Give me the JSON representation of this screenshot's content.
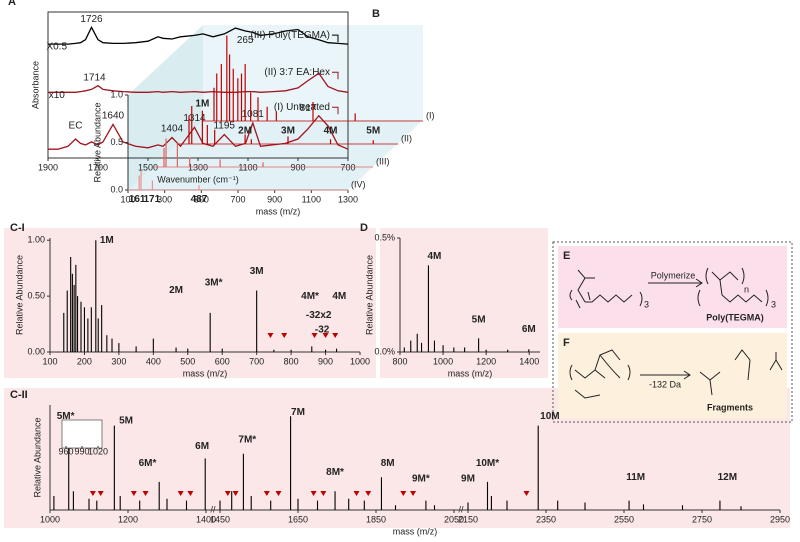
{
  "chart_data": [
    {
      "type": "line",
      "panel": "A",
      "xlabel": "Wavenumber (cm⁻¹)",
      "ylabel": "Absorbance",
      "xlim": [
        1900,
        700
      ],
      "xticks": [
        1900,
        1700,
        1500,
        1300,
        1100,
        900,
        700
      ],
      "ylim": [
        0,
        10
      ],
      "x": [
        1900,
        1860,
        1820,
        1790,
        1770,
        1750,
        1726,
        1700,
        1680,
        1640,
        1600,
        1550,
        1500,
        1460,
        1440,
        1404,
        1370,
        1314,
        1280,
        1240,
        1195,
        1150,
        1110,
        1081,
        1050,
        1000,
        950,
        900,
        860,
        817,
        780,
        740,
        700
      ],
      "series": [
        {
          "name": "(III) Poly(TEGMA)",
          "color": "#000000",
          "values": [
            7.8,
            7.8,
            7.8,
            7.85,
            7.9,
            8.1,
            8.95,
            8.1,
            7.9,
            7.85,
            7.85,
            7.9,
            8.0,
            8.3,
            8.2,
            8.15,
            8.3,
            8.4,
            8.5,
            8.3,
            8.5,
            8.9,
            8.7,
            8.6,
            8.4,
            8.5,
            8.7,
            8.8,
            8.3,
            8.1,
            7.9,
            7.85,
            7.8
          ]
        },
        {
          "name": "(II) 3:7 EA:Hex",
          "color": "#a0141e",
          "values": [
            4.5,
            4.5,
            4.5,
            4.5,
            4.55,
            4.6,
            4.7,
            4.95,
            4.7,
            4.6,
            4.55,
            4.5,
            4.5,
            4.55,
            4.5,
            4.55,
            4.5,
            4.55,
            4.5,
            4.55,
            4.5,
            4.5,
            4.55,
            4.55,
            4.5,
            4.55,
            4.6,
            4.8,
            5.3,
            5.8,
            4.9,
            4.6,
            4.5
          ]
        },
        {
          "name": "(I) Untreated",
          "color": "#a0141e",
          "values": [
            0.6,
            0.6,
            0.8,
            1.3,
            1.0,
            0.9,
            1.1,
            0.9,
            1.1,
            2.3,
            1.1,
            0.8,
            0.7,
            0.9,
            0.8,
            1.4,
            0.8,
            2.1,
            1.0,
            0.8,
            1.6,
            0.8,
            1.0,
            2.4,
            0.8,
            0.9,
            1.0,
            1.3,
            2.0,
            2.9,
            2.2,
            0.9,
            0.6
          ]
        }
      ],
      "annotations": [
        {
          "text": "1726",
          "x": 1726,
          "y": 9.5
        },
        {
          "text": "X0.5",
          "x": 1865,
          "y": 7.6
        },
        {
          "text": "1714",
          "x": 1714,
          "y": 5.5
        },
        {
          "text": "x10",
          "x": 1865,
          "y": 4.3
        },
        {
          "text": "EC",
          "x": 1790,
          "y": 2.2
        },
        {
          "text": "1640",
          "x": 1640,
          "y": 2.9
        },
        {
          "text": "1404",
          "x": 1404,
          "y": 2.0
        },
        {
          "text": "1314",
          "x": 1314,
          "y": 2.7
        },
        {
          "text": "1195",
          "x": 1195,
          "y": 2.2
        },
        {
          "text": "1081",
          "x": 1081,
          "y": 3.0
        },
        {
          "text": "817",
          "x": 860,
          "y": 3.4
        }
      ]
    },
    {
      "type": "bar",
      "panel": "B",
      "xlabel": "mass (m/z)",
      "ylabel": "Relative Abundance",
      "xlim": [
        100,
        1300
      ],
      "xticks": [
        100,
        300,
        500,
        700,
        900,
        1100,
        1300
      ],
      "ylim": [
        0,
        1
      ],
      "yticks": [
        {
          "value": 0,
          "label": "0.0"
        },
        {
          "value": 0.5,
          "label": "0.5"
        },
        {
          "value": 1,
          "label": "1.0"
        }
      ],
      "series": [
        {
          "name": "(I)",
          "color": "#c00000",
          "x": [
            160,
            175,
            200,
            230,
            245,
            265,
            290,
            310,
            330,
            360,
            400,
            450,
            500,
            700,
            930
          ],
          "values": [
            0.35,
            0.5,
            0.6,
            0.9,
            0.7,
            0.55,
            0.45,
            0.5,
            0.6,
            0.3,
            0.25,
            0.15,
            0.1,
            0.2,
            0.08
          ]
        },
        {
          "name": "(II)",
          "color": "#c00000",
          "x": [
            160,
            175,
            233,
            260,
            300,
            466,
            500,
            700,
            932,
            1165
          ],
          "values": [
            0.3,
            0.4,
            0.35,
            0.2,
            0.15,
            0.1,
            0.05,
            0.08,
            0.05,
            0.04
          ]
        },
        {
          "name": "(III)",
          "color": "#e06060",
          "x": [
            160,
            171,
            233,
            300,
            466,
            700
          ],
          "values": [
            0.2,
            0.3,
            0.25,
            0.1,
            0.08,
            0.05
          ]
        },
        {
          "name": "(IV)",
          "color": "#f09090",
          "x": [
            161,
            171,
            233,
            487
          ],
          "values": [
            0.15,
            0.2,
            0.1,
            0.05
          ]
        }
      ],
      "annotations": [
        {
          "text": "265",
          "x": 330,
          "y": 0.85,
          "series": 0,
          "color": "#000000"
        },
        {
          "text": "1M",
          "x": 233,
          "y": 0.42,
          "series": 1,
          "color": "#a0141e"
        },
        {
          "text": "2M",
          "x": 466,
          "y": 0.14,
          "series": 1,
          "color": "#a0141e"
        },
        {
          "text": "3M",
          "x": 700,
          "y": 0.14,
          "series": 1,
          "color": "#a0141e"
        },
        {
          "text": "4M",
          "x": 932,
          "y": 0.14,
          "series": 1,
          "color": "#a0141e"
        },
        {
          "text": "5M",
          "x": 1165,
          "y": 0.14,
          "series": 1,
          "color": "#a0141e"
        },
        {
          "text": "161",
          "x": 150,
          "y": -0.1,
          "series": 3,
          "color": "#aaaaaa"
        },
        {
          "text": "171",
          "x": 230,
          "y": -0.1,
          "series": 3,
          "color": "#a0141e"
        },
        {
          "text": "487",
          "x": 487,
          "y": -0.1,
          "series": 3,
          "color": "#aaaaaa"
        }
      ]
    },
    {
      "type": "bar",
      "panel": "C-I",
      "xlabel": "mass (m/z)",
      "ylabel": "Relative Abundance",
      "color": "#000000",
      "xlim": [
        100,
        1000
      ],
      "xticks": [
        100,
        200,
        300,
        400,
        500,
        600,
        700,
        800,
        900,
        1000
      ],
      "ylim": [
        0,
        1.02
      ],
      "yticks": [
        {
          "value": 0,
          "label": "0.00"
        },
        {
          "value": 0.5,
          "label": "0.50"
        },
        {
          "value": 1,
          "label": "1.00"
        }
      ],
      "x": [
        140,
        150,
        160,
        165,
        170,
        175,
        180,
        190,
        200,
        210,
        220,
        233,
        240,
        250,
        265,
        280,
        300,
        350,
        400,
        466,
        500,
        565,
        600,
        700,
        750,
        800,
        860,
        900,
        932
      ],
      "values": [
        0.35,
        0.55,
        0.85,
        0.7,
        0.6,
        0.78,
        0.5,
        0.45,
        0.4,
        0.3,
        0.4,
        1.0,
        0.3,
        0.42,
        0.15,
        0.12,
        0.08,
        0.05,
        0.12,
        0.04,
        0.03,
        0.35,
        0.03,
        0.55,
        0.02,
        0.02,
        0.05,
        0.02,
        0.03
      ],
      "markers": [
        740,
        780,
        868,
        900,
        928
      ],
      "annotations": [
        {
          "text": "1M",
          "x": 265,
          "y": 1.0
        },
        {
          "text": "2M",
          "x": 466,
          "y": 0.55
        },
        {
          "text": "3M*",
          "x": 575,
          "y": 0.62
        },
        {
          "text": "3M",
          "x": 700,
          "y": 0.72
        },
        {
          "text": "4M*",
          "x": 855,
          "y": 0.5
        },
        {
          "text": "4M",
          "x": 940,
          "y": 0.5
        },
        {
          "text": "-32x2",
          "x": 880,
          "y": 0.33
        },
        {
          "text": "-32",
          "x": 890,
          "y": 0.2
        }
      ]
    },
    {
      "type": "bar",
      "panel": "D",
      "xlabel": "mass (m/z)",
      "ylabel": "Relative Abundance",
      "color": "#000000",
      "xlim": [
        800,
        1450
      ],
      "xticks": [
        800,
        1000,
        1200,
        1400
      ],
      "ylim": [
        0,
        0.5
      ],
      "yticks": [
        {
          "value": 0,
          "label": "0.0%"
        },
        {
          "value": 0.5,
          "label": "0.5%"
        }
      ],
      "x": [
        820,
        850,
        880,
        900,
        932,
        960,
        1000,
        1050,
        1100,
        1165,
        1200,
        1300,
        1398
      ],
      "values": [
        0.02,
        0.05,
        0.08,
        0.04,
        0.38,
        0.05,
        0.03,
        0.02,
        0.02,
        0.06,
        0.01,
        0.01,
        0.012
      ],
      "annotations": [
        {
          "text": "4M",
          "x": 960,
          "y": 0.42
        },
        {
          "text": "5M",
          "x": 1165,
          "y": 0.14
        },
        {
          "text": "6M",
          "x": 1398,
          "y": 0.1
        }
      ]
    },
    {
      "type": "bar",
      "panel": "C-II",
      "xlabel": "mass (m/z)",
      "ylabel": "Relative Abundance",
      "color": "#000000",
      "xsegments": [
        [
          1000,
          1400
        ],
        [
          1450,
          2050
        ],
        [
          2150,
          2950
        ]
      ],
      "xticks": [
        1000,
        1200,
        1400,
        1450,
        1650,
        1850,
        2050,
        2150,
        2350,
        2550,
        2750,
        2950
      ],
      "ylim": [
        0,
        1.12
      ],
      "x": [
        1010,
        1048,
        1060,
        1100,
        1120,
        1165,
        1180,
        1230,
        1280,
        1300,
        1350,
        1398,
        1410,
        1480,
        1510,
        1530,
        1580,
        1631,
        1650,
        1700,
        1745,
        1780,
        1820,
        1864,
        1900,
        1978,
        2000,
        2097,
        2200,
        2210,
        2250,
        2330,
        2380,
        2450,
        2563,
        2600,
        2700,
        2796,
        2850
      ],
      "values": [
        0.15,
        0.72,
        0.2,
        0.12,
        0.1,
        0.9,
        0.15,
        0.1,
        0.3,
        0.12,
        0.1,
        0.55,
        0.1,
        0.2,
        0.6,
        0.15,
        0.1,
        1.0,
        0.12,
        0.1,
        0.2,
        0.12,
        0.1,
        0.35,
        0.05,
        0.1,
        0.05,
        0.08,
        0.3,
        0.15,
        0.1,
        0.9,
        0.1,
        0.08,
        0.1,
        0.06,
        0.05,
        0.1,
        0.04
      ],
      "markers": [
        1110,
        1130,
        1215,
        1245,
        1335,
        1360,
        1470,
        1490,
        1570,
        1600,
        1690,
        1715,
        1800,
        1830,
        1920,
        1945,
        2300
      ],
      "inset_ticks": [
        960,
        990,
        1020
      ],
      "annotations": [
        {
          "text": "5M*",
          "x": 1040,
          "y": 1.0
        },
        {
          "text": "5M",
          "x": 1195,
          "y": 0.95
        },
        {
          "text": "6M*",
          "x": 1250,
          "y": 0.5
        },
        {
          "text": "6M",
          "x": 1390,
          "y": 0.68
        },
        {
          "text": "7M*",
          "x": 1520,
          "y": 0.75
        },
        {
          "text": "7M",
          "x": 1650,
          "y": 1.04
        },
        {
          "text": "8M*",
          "x": 1745,
          "y": 0.4
        },
        {
          "text": "8M",
          "x": 1880,
          "y": 0.5
        },
        {
          "text": "9M*",
          "x": 1965,
          "y": 0.33
        },
        {
          "text": "9M",
          "x": 2100,
          "y": 0.33
        },
        {
          "text": "10M*",
          "x": 2200,
          "y": 0.5
        },
        {
          "text": "10M",
          "x": 2360,
          "y": 1.0
        },
        {
          "text": "11M",
          "x": 2580,
          "y": 0.35
        },
        {
          "text": "12M",
          "x": 2815,
          "y": 0.35
        }
      ]
    }
  ],
  "schemes": [
    {
      "panel": "E",
      "arrow_label": "Polymerize",
      "product": "Poly(TEGMA)",
      "subscripts": [
        "3",
        "n",
        "3"
      ]
    },
    {
      "panel": "F",
      "arrow_label": "-132 Da",
      "product": "Fragments"
    }
  ]
}
